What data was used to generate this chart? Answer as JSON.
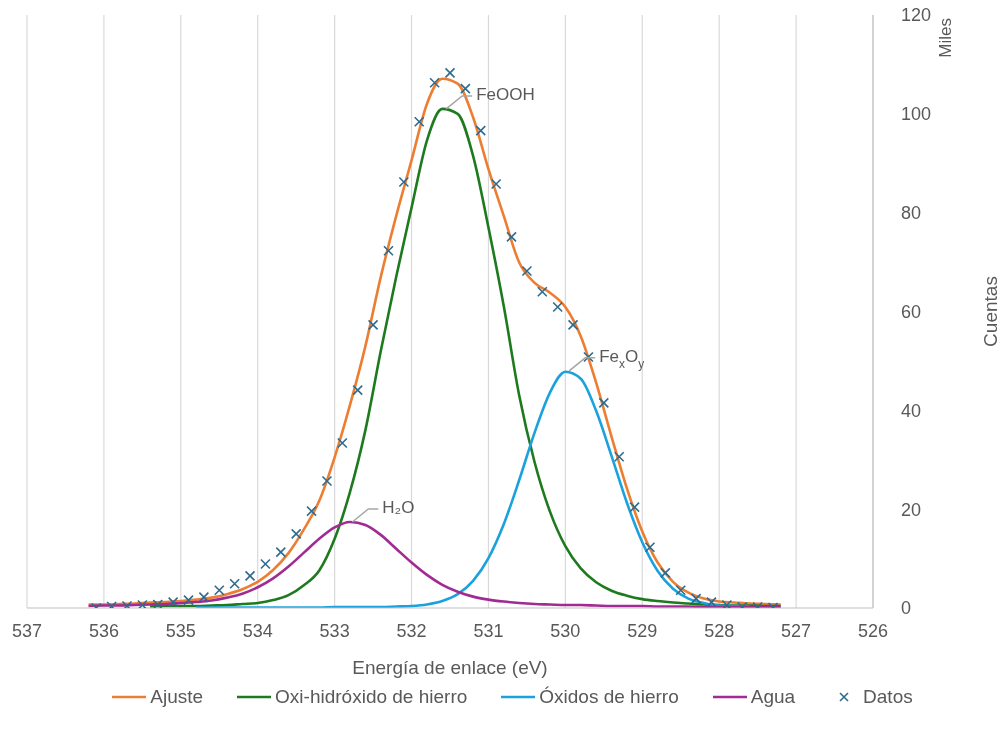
{
  "chart_data": {
    "type": "line",
    "xlabel": "Energía de enlace (eV)",
    "ylabel": "Cuentas",
    "xlim": [
      537,
      526
    ],
    "xticks": [
      537,
      536,
      535,
      534,
      533,
      532,
      531,
      530,
      529,
      528,
      527,
      526
    ],
    "ylim": [
      0,
      120
    ],
    "yticks": [
      0,
      20,
      40,
      60,
      80,
      100,
      120
    ],
    "grid": "x",
    "legend": "bottom",
    "annotations": [
      "Miles",
      {
        "text": "FeOOH",
        "x": 531.55,
        "y": 101
      },
      {
        "text": "Fe$_{x}$O$_{y}$",
        "x": 529.95,
        "y": 48
      },
      {
        "text": "H₂O",
        "x": 532.77,
        "y": 17.4
      }
    ],
    "series": [
      {
        "name": "Ajuste",
        "type": "line",
        "marker": "none",
        "color": "#ed7d31",
        "x": [
          536.2,
          536.0,
          535.8,
          535.6,
          535.4,
          535.2,
          535.0,
          534.8,
          534.6,
          534.4,
          534.2,
          534.0,
          533.8,
          533.6,
          533.4,
          533.2,
          533.0,
          532.8,
          532.6,
          532.4,
          532.2,
          532.0,
          531.8,
          531.6,
          531.4,
          531.2,
          531.0,
          530.8,
          530.6,
          530.4,
          530.2,
          530.0,
          529.8,
          529.6,
          529.4,
          529.2,
          529.0,
          528.8,
          528.6,
          528.4,
          528.2,
          528.0,
          527.8,
          527.6,
          527.4,
          527.2
        ],
        "values": [
          0.7,
          0.7,
          0.8,
          0.9,
          1.1,
          1.2,
          1.4,
          1.7,
          2.1,
          2.8,
          3.8,
          5.3,
          7.7,
          11.1,
          15.9,
          21.7,
          30.5,
          41.1,
          53.0,
          67.0,
          79.3,
          90.6,
          102.0,
          107.1,
          106.1,
          99.3,
          88.8,
          79.3,
          69.9,
          65.8,
          63.8,
          60.9,
          55.0,
          45.6,
          34.7,
          24.2,
          15.5,
          9.2,
          5.3,
          3.1,
          1.9,
          1.3,
          1.1,
          0.9,
          0.8,
          0.7
        ]
      },
      {
        "name": "Oxi-hidróxido de hierro",
        "type": "line",
        "marker": "none",
        "color": "#1e7a1e",
        "x": [
          535.4,
          535.2,
          535.0,
          534.8,
          534.6,
          534.4,
          534.2,
          534.0,
          533.8,
          533.6,
          533.4,
          533.2,
          533.0,
          532.8,
          532.6,
          532.4,
          532.2,
          532.0,
          531.8,
          531.6,
          531.4,
          531.2,
          531.0,
          530.8,
          530.6,
          530.4,
          530.2,
          530.0,
          529.8,
          529.6,
          529.4,
          529.2,
          529.0,
          528.8,
          528.6,
          528.4,
          528.2,
          528.0,
          527.8,
          527.6,
          527.4,
          527.2
        ],
        "values": [
          0.3,
          0.4,
          0.4,
          0.4,
          0.5,
          0.6,
          0.8,
          1.0,
          1.6,
          2.6,
          4.6,
          7.6,
          14.0,
          23.5,
          36,
          52,
          67,
          81,
          94.6,
          101,
          100,
          91.5,
          77,
          61,
          43,
          29.5,
          19.5,
          12.5,
          8,
          5.2,
          3.5,
          2.5,
          1.8,
          1.4,
          1.1,
          0.9,
          0.7,
          0.6,
          0.5,
          0.5,
          0.4,
          0.4
        ]
      },
      {
        "name": "Óxidos de hierro",
        "type": "line",
        "marker": "none",
        "color": "#1ba1db",
        "x": [
          534.8,
          534.6,
          534.4,
          534.2,
          534.0,
          533.8,
          533.6,
          533.4,
          533.2,
          533.0,
          532.8,
          532.6,
          532.4,
          532.2,
          532.0,
          531.8,
          531.6,
          531.4,
          531.2,
          531.0,
          530.8,
          530.6,
          530.4,
          530.2,
          530.0,
          529.8,
          529.6,
          529.4,
          529.2,
          529.0,
          528.8,
          528.6,
          528.4,
          528.2,
          528.0,
          527.8,
          527.6
        ],
        "values": [
          0.1,
          0.1,
          0.1,
          0.1,
          0.1,
          0.1,
          0.1,
          0.1,
          0.1,
          0.2,
          0.2,
          0.2,
          0.2,
          0.3,
          0.4,
          0.7,
          1.4,
          2.8,
          5.5,
          10.1,
          17.0,
          25.9,
          35.5,
          43.6,
          47.8,
          46.4,
          39.9,
          30.8,
          21.3,
          13.3,
          7.5,
          3.9,
          1.9,
          1.0,
          0.5,
          0.4,
          0.3
        ]
      },
      {
        "name": "Agua",
        "type": "line",
        "marker": "none",
        "color": "#a02b93",
        "x": [
          536.2,
          536.0,
          535.8,
          535.6,
          535.4,
          535.2,
          535.0,
          534.8,
          534.6,
          534.4,
          534.2,
          534.0,
          533.8,
          533.6,
          533.4,
          533.2,
          533.0,
          532.8,
          532.6,
          532.4,
          532.2,
          532.0,
          531.8,
          531.6,
          531.4,
          531.2,
          531.0,
          530.8,
          530.6,
          530.4,
          530.2,
          530.0,
          529.8,
          529.6,
          529.4,
          529.2,
          529.0,
          528.8,
          528.6,
          528.4,
          528.2,
          528.0,
          527.8,
          527.6,
          527.4,
          527.2
        ],
        "values": [
          0.4,
          0.5,
          0.5,
          0.6,
          0.7,
          0.8,
          1.0,
          1.2,
          1.5,
          2.1,
          2.9,
          4.2,
          6.0,
          8.4,
          11.2,
          14.0,
          16.3,
          17.4,
          16.8,
          14.8,
          12.0,
          9.2,
          6.7,
          4.7,
          3.3,
          2.3,
          1.7,
          1.3,
          1.0,
          0.8,
          0.7,
          0.6,
          0.6,
          0.5,
          0.4,
          0.4,
          0.4,
          0.3,
          0.3,
          0.3,
          0.2,
          0.2,
          0.2,
          0.2,
          0.2,
          0.2
        ]
      },
      {
        "name": "Datos",
        "type": "scatter",
        "marker": "cross",
        "color": "#2e6b8e",
        "x": [
          536.1,
          535.9,
          535.7,
          535.5,
          535.3,
          535.1,
          534.9,
          534.7,
          534.5,
          534.3,
          534.1,
          533.9,
          533.7,
          533.5,
          533.3,
          533.1,
          532.9,
          532.7,
          532.5,
          532.3,
          532.1,
          531.9,
          531.7,
          531.5,
          531.3,
          531.1,
          530.9,
          530.7,
          530.5,
          530.3,
          530.1,
          529.9,
          529.7,
          529.5,
          529.3,
          529.1,
          528.9,
          528.7,
          528.5,
          528.3,
          528.1,
          527.9,
          527.7,
          527.5,
          527.3
        ],
        "values": [
          0,
          0.3,
          0.4,
          0.6,
          0.7,
          1.2,
          1.6,
          2.2,
          3.6,
          4.9,
          6.5,
          8.9,
          11.3,
          15.0,
          19.6,
          25.7,
          33.4,
          44.1,
          57.3,
          72.3,
          86.2,
          98.4,
          106.3,
          108.3,
          105.1,
          96.6,
          85.8,
          75.1,
          68.2,
          64.0,
          60.9,
          57.3,
          50.8,
          41.5,
          30.6,
          20.4,
          12.3,
          7.1,
          3.6,
          1.9,
          1.2,
          0.6,
          0.2,
          0.2,
          0.1
        ]
      }
    ]
  }
}
